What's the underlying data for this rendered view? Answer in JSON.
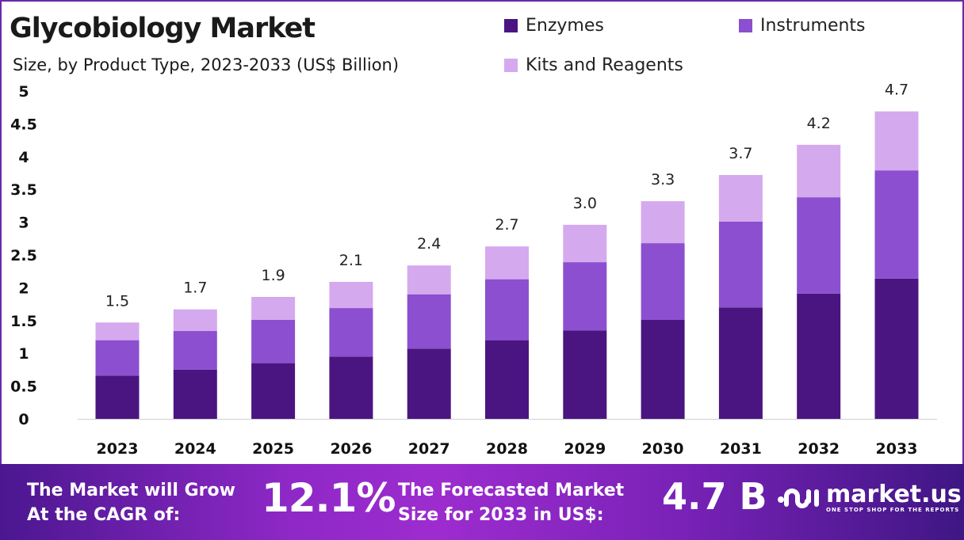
{
  "header": {
    "title": "Glycobiology Market",
    "subtitle": "Size, by Product Type, 2023-2033 (US$ Billion)"
  },
  "colors": {
    "Enzymes": "#4a1580",
    "Instruments": "#8b4fcf",
    "Kits and Reagents": "#d5a9ee"
  },
  "chart_data": {
    "type": "bar",
    "stacked": true,
    "categories": [
      "2023",
      "2024",
      "2025",
      "2026",
      "2027",
      "2028",
      "2029",
      "2030",
      "2031",
      "2032",
      "2033"
    ],
    "series": [
      {
        "name": "Enzymes",
        "values": [
          0.66,
          0.75,
          0.85,
          0.95,
          1.07,
          1.2,
          1.35,
          1.51,
          1.7,
          1.91,
          2.14
        ]
      },
      {
        "name": "Instruments",
        "values": [
          0.54,
          0.59,
          0.66,
          0.74,
          0.83,
          0.93,
          1.04,
          1.17,
          1.31,
          1.47,
          1.65
        ]
      },
      {
        "name": "Kits and Reagents",
        "values": [
          0.27,
          0.33,
          0.35,
          0.4,
          0.44,
          0.5,
          0.57,
          0.64,
          0.71,
          0.8,
          0.9
        ]
      }
    ],
    "totals_labels": [
      "1.5",
      "1.7",
      "1.9",
      "2.1",
      "2.4",
      "2.7",
      "3.0",
      "3.3",
      "3.7",
      "4.2",
      "4.7"
    ],
    "yticks": [
      "0",
      "0.5",
      "1",
      "1.5",
      "2",
      "2.5",
      "3",
      "3.5",
      "4",
      "4.5",
      "5"
    ],
    "ylim": [
      0,
      5
    ],
    "grid": false,
    "legend": "top-right"
  },
  "footer": {
    "cagr_text_1": "The Market will Grow",
    "cagr_text_2": "At the CAGR of:",
    "cagr_value": "12.1%",
    "forecast_text_1": "The Forecasted Market",
    "forecast_text_2": "Size for 2033 in US$:",
    "forecast_value": "4.7 B",
    "logo_name": "market.us",
    "logo_tagline": "ONE STOP SHOP FOR THE REPORTS"
  }
}
